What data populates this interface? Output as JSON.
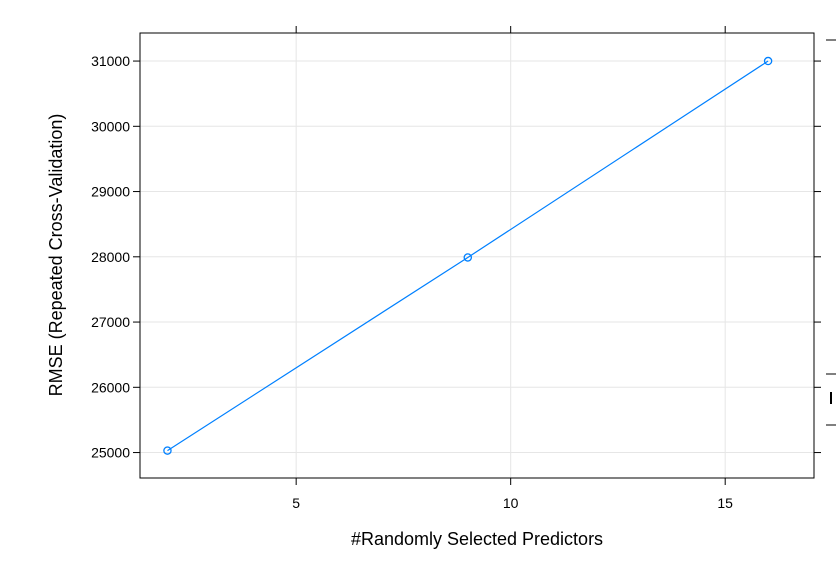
{
  "chart_data": {
    "type": "line",
    "title": "",
    "xlabel": "#Randomly Selected Predictors",
    "ylabel": "RMSE (Repeated Cross-Validation)",
    "x": [
      2,
      9,
      16
    ],
    "series": [
      {
        "values": [
          25030,
          27990,
          31000
        ],
        "color": "#0080ff"
      }
    ],
    "xlim": [
      1.36,
      17.07
    ],
    "ylim": [
      24610,
      31430
    ],
    "xticks": [
      5,
      10,
      15
    ],
    "yticks": [
      25000,
      26000,
      27000,
      28000,
      29000,
      30000,
      31000
    ],
    "grid": true,
    "marker": "circle"
  }
}
